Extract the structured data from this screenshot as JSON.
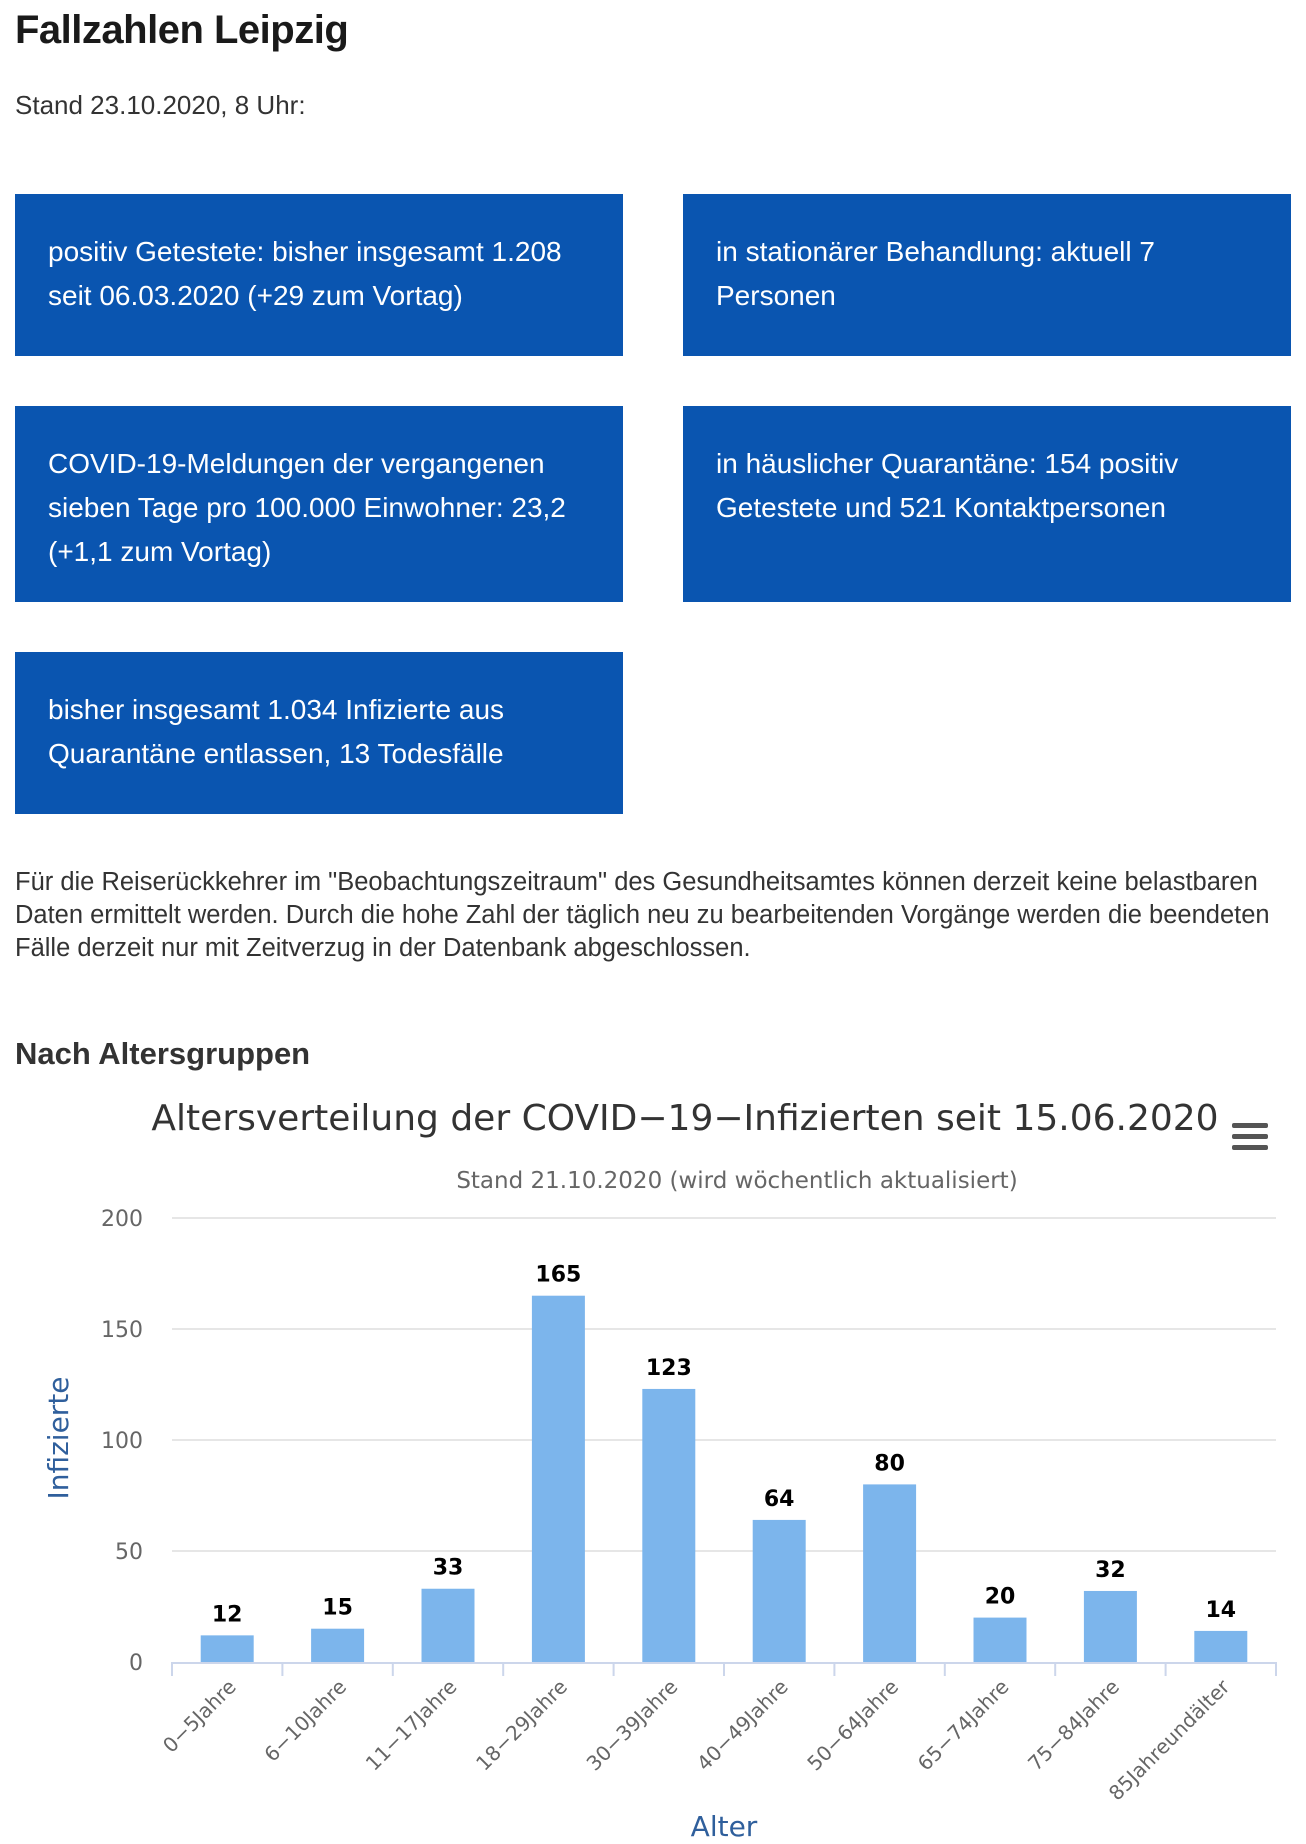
{
  "header": {
    "title": "Fallzahlen Leipzig",
    "stand": "Stand 23.10.2020, 8 Uhr:"
  },
  "cards": [
    {
      "text": "positiv Getestete: bisher insgesamt 1.208 seit 06.03.2020 (+29 zum Vortag)"
    },
    {
      "text": "in stationärer Behandlung: aktuell 7 Personen"
    },
    {
      "text": "COVID-19-Meldungen der vergangenen sieben Tage pro 100.000 Einwohner: 23,2 (+1,1 zum Vortag)"
    },
    {
      "text": "in häuslicher Quarantäne: 154 positiv Getestete und 521 Kontaktpersonen"
    },
    {
      "text": "bisher insgesamt 1.034 Infizierte aus Quarantäne entlassen, 13 Todesfälle"
    }
  ],
  "note": "Für die Reiserückkehrer im \"Beobachtungszeitraum\" des Gesundheitsamtes können derzeit keine belastbaren Daten ermittelt werden. Durch die hohe Zahl der täglich neu zu bearbeitenden Vorgänge werden die beendeten Fälle derzeit nur mit Zeitverzug in der Datenbank abgeschlossen.",
  "section_title": "Nach Altersgruppen",
  "colors": {
    "card_bg": "#0a55b0",
    "bar": "#7cb5ec",
    "axis_title": "#2f5f9c"
  },
  "chart_data": {
    "type": "bar",
    "title": "Altersverteilung der COVID−19−Infizierten seit 15.06.2020",
    "subtitle": "Stand 21.10.2020 (wird wöchentlich aktualisiert)",
    "xlabel": "Alter",
    "ylabel": "Infizierte",
    "categories": [
      "0−5Jahre",
      "6−10Jahre",
      "11−17Jahre",
      "18−29Jahre",
      "30−39Jahre",
      "40−49Jahre",
      "50−64Jahre",
      "65−74Jahre",
      "75−84Jahre",
      "85Jahreundälter"
    ],
    "values": [
      12,
      15,
      33,
      165,
      123,
      64,
      80,
      20,
      32,
      14
    ],
    "ylim": [
      0,
      200
    ],
    "yticks": [
      0,
      50,
      100,
      150,
      200
    ],
    "grid": true,
    "legend": "none",
    "data_labels": true,
    "menu_icon": "hamburger-menu-icon"
  }
}
